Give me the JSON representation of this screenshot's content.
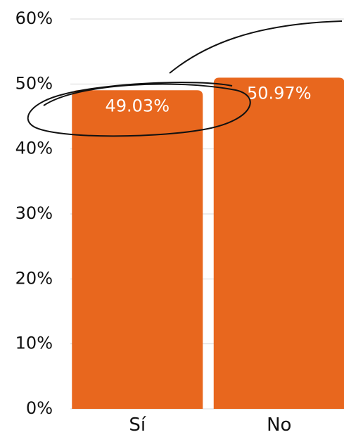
{
  "chart_data": {
    "type": "bar",
    "categories": [
      "Sí",
      "No"
    ],
    "values": [
      49.03,
      50.97
    ],
    "data_labels": [
      "49.03%",
      "50.97%"
    ],
    "ylim": [
      0,
      60
    ],
    "yticks": [
      0,
      10,
      20,
      30,
      40,
      50,
      60
    ],
    "ytick_labels": [
      "0%",
      "10%",
      "20%",
      "30%",
      "40%",
      "50%",
      "60%"
    ],
    "grid": true,
    "legend": "none",
    "colors": {
      "bar": "#E8671E",
      "grid": "#d9d9d9",
      "annotation": "#111111"
    },
    "annotation": "hand-drawn ellipse around the Sí bar label with a curved callout line"
  }
}
